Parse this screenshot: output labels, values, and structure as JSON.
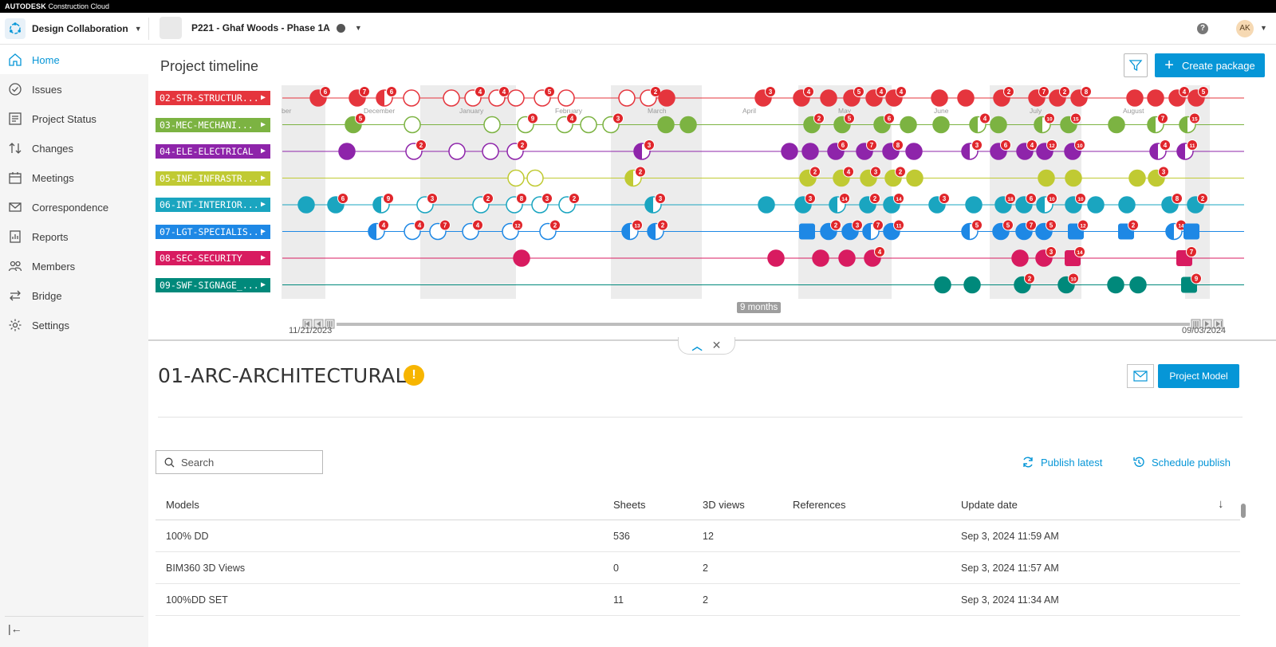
{
  "brand": {
    "bold": "AUTODESK",
    "rest": "Construction Cloud"
  },
  "header": {
    "app_name": "Design Collaboration",
    "project_name": "P221 - Ghaf Woods - Phase 1A",
    "help": "?",
    "avatar": "AK"
  },
  "sidebar": {
    "items": [
      {
        "label": "Home",
        "icon": "home-icon"
      },
      {
        "label": "Issues",
        "icon": "issues-icon"
      },
      {
        "label": "Project Status",
        "icon": "project-status-icon"
      },
      {
        "label": "Changes",
        "icon": "changes-icon"
      },
      {
        "label": "Meetings",
        "icon": "meetings-icon"
      },
      {
        "label": "Correspondence",
        "icon": "mail-icon"
      },
      {
        "label": "Reports",
        "icon": "reports-icon"
      },
      {
        "label": "Members",
        "icon": "members-icon"
      },
      {
        "label": "Bridge",
        "icon": "bridge-icon"
      },
      {
        "label": "Settings",
        "icon": "gear-icon"
      }
    ],
    "collapse": "|←"
  },
  "main": {
    "title": "Project timeline",
    "create_label": "Create package"
  },
  "timeline": {
    "packages": [
      {
        "label": "02-STR-STRUCTUR...",
        "color": "#e5353d"
      },
      {
        "label": "03-MEC-MECHANI...",
        "color": "#7cb342"
      },
      {
        "label": "04-ELE-ELECTRICAL",
        "color": "#8e24aa"
      },
      {
        "label": "05-INF-INFRASTR...",
        "color": "#c0ca33"
      },
      {
        "label": "06-INT-INTERIOR...",
        "color": "#1aa5c0"
      },
      {
        "label": "07-LGT-SPECIALIS...",
        "color": "#1e88e5"
      },
      {
        "label": "08-SEC-SECURITY",
        "color": "#d81b60"
      },
      {
        "label": "09-SWF-SIGNAGE_...",
        "color": "#00897b"
      }
    ],
    "months": [
      "ber",
      "December",
      "January",
      "February",
      "March",
      "April",
      "May",
      "June",
      "July",
      "August"
    ],
    "range_label": "9 months",
    "start_date": "11/21/2023",
    "end_date": "09/03/2024"
  },
  "detail": {
    "title": "01-ARC-ARCHITECTURAL",
    "warn": "!",
    "project_model_label": "Project Model",
    "search_placeholder": "Search",
    "publish_latest": "Publish latest",
    "schedule_publish": "Schedule publish",
    "columns": {
      "models": "Models",
      "sheets": "Sheets",
      "views3d": "3D views",
      "refs": "References",
      "update": "Update date"
    },
    "rows": [
      {
        "model": "100% DD",
        "sheets": "536",
        "views": "12",
        "refs": "",
        "date": "Sep 3, 2024 11:59 AM"
      },
      {
        "model": "BIM360 3D Views",
        "sheets": "0",
        "views": "2",
        "refs": "",
        "date": "Sep 3, 2024 11:57 AM"
      },
      {
        "model": "100%DD SET",
        "sheets": "11",
        "views": "2",
        "refs": "",
        "date": "Sep 3, 2024 11:34 AM"
      }
    ]
  }
}
